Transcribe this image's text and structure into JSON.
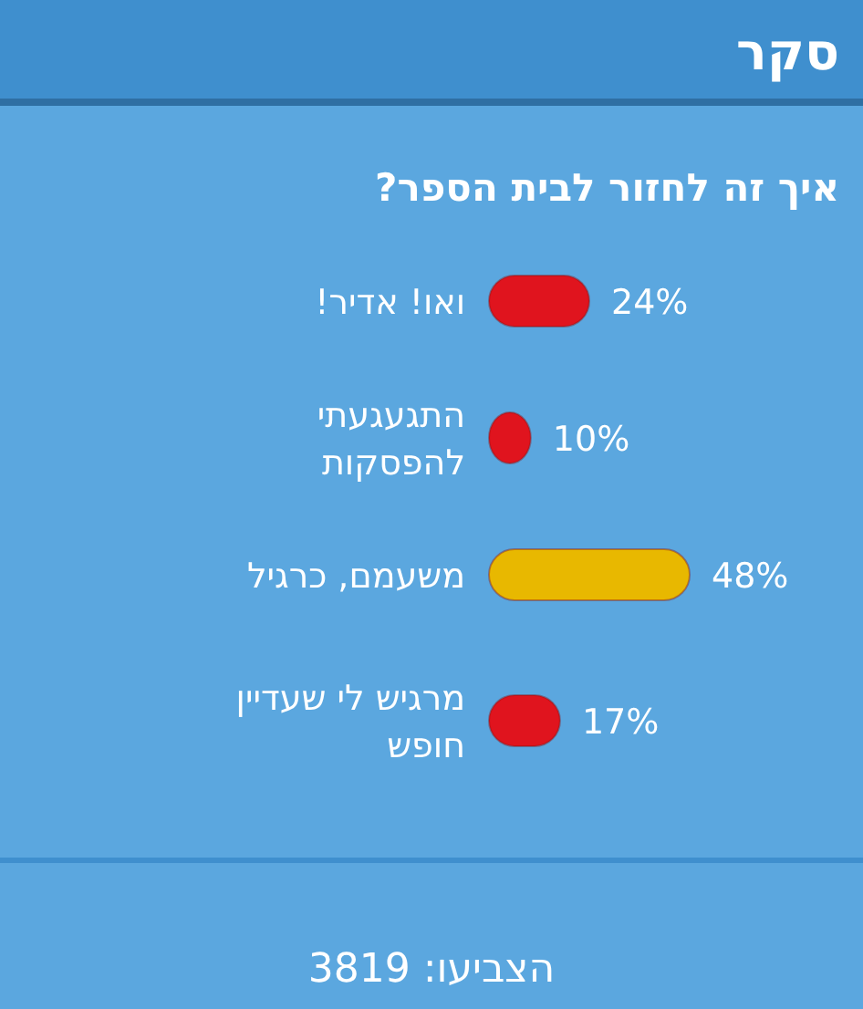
{
  "chart_data": {
    "type": "bar",
    "orientation": "horizontal",
    "title": "סקר",
    "subtitle": "איך זה לחזור לבית הספר?",
    "categories": [
      "ואו! אדיר!",
      "התגעגעתי להפסקות",
      "משעמם, כרגיל",
      "מרגיש לי שעדיין חופש"
    ],
    "values": [
      24,
      10,
      48,
      17
    ],
    "colors": [
      "#e0141e",
      "#e0141e",
      "#e8b800",
      "#e0141e"
    ],
    "value_labels": [
      "24%",
      "10%",
      "48%",
      "17%"
    ],
    "annotations": [
      "הצביעו: 3819"
    ]
  }
}
